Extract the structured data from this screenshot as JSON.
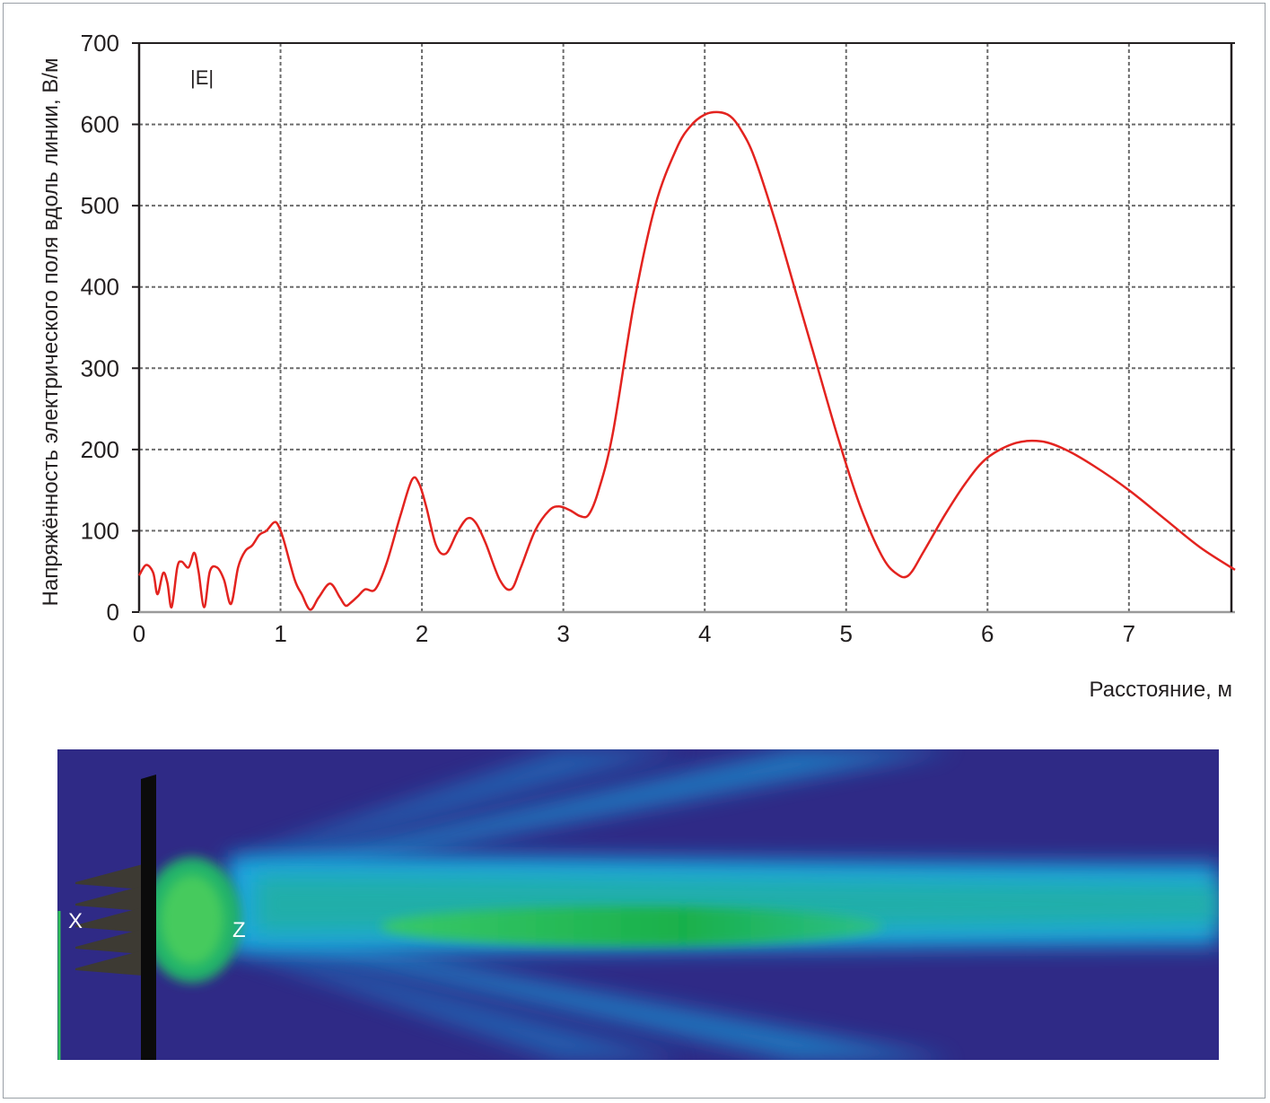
{
  "chart_data": {
    "type": "line",
    "title": "",
    "xlabel": "Расстояние, м",
    "ylabel": "Напряжённость электрического поля вдоль линии, В/м",
    "xlim": [
      0,
      7.75
    ],
    "ylim": [
      0,
      700
    ],
    "x_ticks": [
      "0",
      "1",
      "2",
      "3",
      "4",
      "5",
      "6",
      "7"
    ],
    "y_ticks": [
      "0",
      "100",
      "200",
      "300",
      "400",
      "500",
      "600",
      "700"
    ],
    "grid": true,
    "legend": "none",
    "series": [
      {
        "name": "|E|",
        "color": "#e3231f",
        "x": [
          0,
          0.05,
          0.1,
          0.13,
          0.17,
          0.2,
          0.23,
          0.27,
          0.3,
          0.35,
          0.39,
          0.42,
          0.46,
          0.5,
          0.55,
          0.6,
          0.65,
          0.7,
          0.75,
          0.8,
          0.85,
          0.9,
          0.95,
          0.98,
          1.02,
          1.1,
          1.15,
          1.21,
          1.27,
          1.35,
          1.42,
          1.46,
          1.5,
          1.55,
          1.6,
          1.67,
          1.75,
          1.85,
          1.93,
          1.98,
          2.03,
          2.1,
          2.17,
          2.25,
          2.32,
          2.38,
          2.45,
          2.55,
          2.63,
          2.7,
          2.8,
          2.9,
          2.97,
          3.05,
          3.12,
          3.18,
          3.25,
          3.35,
          3.5,
          3.65,
          3.8,
          3.9,
          4.0,
          4.1,
          4.18,
          4.25,
          4.35,
          4.5,
          4.65,
          4.8,
          4.95,
          5.1,
          5.25,
          5.35,
          5.44,
          5.55,
          5.7,
          5.85,
          6.0,
          6.2,
          6.38,
          6.55,
          6.75,
          7.0,
          7.25,
          7.5,
          7.75
        ],
        "y": [
          45,
          58,
          48,
          22,
          48,
          36,
          6,
          55,
          62,
          55,
          73,
          50,
          6,
          50,
          55,
          40,
          10,
          55,
          75,
          82,
          95,
          100,
          110,
          108,
          90,
          40,
          22,
          3,
          18,
          35,
          18,
          8,
          12,
          20,
          28,
          28,
          60,
          120,
          163,
          158,
          130,
          82,
          72,
          98,
          115,
          110,
          85,
          40,
          28,
          55,
          100,
          125,
          130,
          125,
          118,
          120,
          150,
          220,
          380,
          500,
          570,
          598,
          612,
          615,
          610,
          595,
          560,
          480,
          390,
          300,
          210,
          130,
          70,
          48,
          45,
          75,
          120,
          160,
          190,
          208,
          210,
          200,
          180,
          150,
          115,
          80,
          52
        ]
      }
    ]
  },
  "field_view": {
    "labels": {
      "x_axis": "X",
      "z_axis": "Z"
    }
  }
}
